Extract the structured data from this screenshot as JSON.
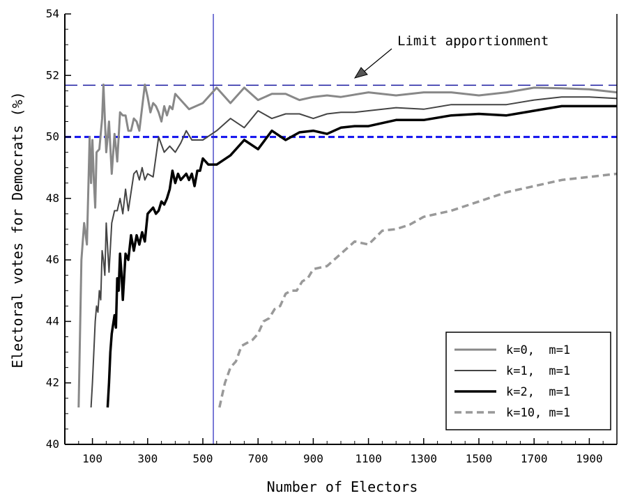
{
  "chart_data": {
    "type": "line",
    "xlabel": "Number of Electors",
    "ylabel": "Electoral votes for Democrats (%)",
    "xlim": [
      0,
      2000
    ],
    "ylim": [
      40,
      54
    ],
    "xticks": [
      100,
      300,
      500,
      700,
      900,
      1100,
      1300,
      1500,
      1700,
      1900
    ],
    "yticks": [
      40,
      42,
      44,
      46,
      48,
      50,
      52,
      54
    ],
    "annotation": {
      "text": "Limit apportionment",
      "y": 51.68
    },
    "reference_lines": {
      "limit_apportionment_y": 51.68,
      "fifty_percent_y": 50.0,
      "vertical_x": 538
    },
    "legend_position": "bottom-right",
    "series": [
      {
        "name": "k=0,  m=1",
        "color": "#888888",
        "dash": "solid",
        "width": 3,
        "points": [
          [
            50,
            41.2
          ],
          [
            60,
            46.0
          ],
          [
            70,
            47.2
          ],
          [
            80,
            46.5
          ],
          [
            90,
            50.0
          ],
          [
            95,
            48.5
          ],
          [
            100,
            49.9
          ],
          [
            105,
            48.6
          ],
          [
            110,
            47.7
          ],
          [
            115,
            49.5
          ],
          [
            125,
            49.6
          ],
          [
            135,
            50.6
          ],
          [
            140,
            51.7
          ],
          [
            150,
            49.5
          ],
          [
            160,
            50.5
          ],
          [
            170,
            48.8
          ],
          [
            180,
            50.1
          ],
          [
            190,
            49.2
          ],
          [
            200,
            50.8
          ],
          [
            210,
            50.7
          ],
          [
            220,
            50.7
          ],
          [
            230,
            50.2
          ],
          [
            240,
            50.2
          ],
          [
            250,
            50.6
          ],
          [
            260,
            50.5
          ],
          [
            270,
            50.2
          ],
          [
            290,
            51.7
          ],
          [
            300,
            51.3
          ],
          [
            310,
            50.8
          ],
          [
            320,
            51.1
          ],
          [
            330,
            51.0
          ],
          [
            340,
            50.8
          ],
          [
            350,
            50.5
          ],
          [
            360,
            51.0
          ],
          [
            370,
            50.7
          ],
          [
            380,
            51.0
          ],
          [
            390,
            50.9
          ],
          [
            400,
            51.4
          ],
          [
            450,
            50.9
          ],
          [
            500,
            51.1
          ],
          [
            550,
            51.6
          ],
          [
            600,
            51.1
          ],
          [
            650,
            51.6
          ],
          [
            700,
            51.2
          ],
          [
            750,
            51.4
          ],
          [
            800,
            51.4
          ],
          [
            850,
            51.2
          ],
          [
            900,
            51.3
          ],
          [
            950,
            51.35
          ],
          [
            1000,
            51.3
          ],
          [
            1100,
            51.45
          ],
          [
            1200,
            51.35
          ],
          [
            1300,
            51.45
          ],
          [
            1400,
            51.45
          ],
          [
            1500,
            51.35
          ],
          [
            1600,
            51.45
          ],
          [
            1700,
            51.6
          ],
          [
            1800,
            51.58
          ],
          [
            1900,
            51.55
          ],
          [
            2000,
            51.45
          ]
        ]
      },
      {
        "name": "k=1,  m=1",
        "color": "#444444",
        "dash": "solid",
        "width": 2,
        "points": [
          [
            95,
            41.2
          ],
          [
            100,
            42.0
          ],
          [
            110,
            44.0
          ],
          [
            115,
            44.5
          ],
          [
            120,
            44.3
          ],
          [
            125,
            45.0
          ],
          [
            130,
            44.7
          ],
          [
            135,
            46.3
          ],
          [
            140,
            46.0
          ],
          [
            145,
            45.5
          ],
          [
            150,
            47.2
          ],
          [
            160,
            45.6
          ],
          [
            170,
            47.2
          ],
          [
            180,
            47.6
          ],
          [
            190,
            47.6
          ],
          [
            200,
            48.0
          ],
          [
            210,
            47.5
          ],
          [
            220,
            48.3
          ],
          [
            230,
            47.6
          ],
          [
            240,
            48.2
          ],
          [
            250,
            48.8
          ],
          [
            260,
            48.9
          ],
          [
            270,
            48.6
          ],
          [
            280,
            49.0
          ],
          [
            290,
            48.6
          ],
          [
            300,
            48.8
          ],
          [
            320,
            48.7
          ],
          [
            340,
            50.0
          ],
          [
            360,
            49.5
          ],
          [
            380,
            49.7
          ],
          [
            400,
            49.5
          ],
          [
            420,
            49.8
          ],
          [
            440,
            50.2
          ],
          [
            460,
            49.9
          ],
          [
            500,
            49.9
          ],
          [
            550,
            50.2
          ],
          [
            600,
            50.6
          ],
          [
            650,
            50.3
          ],
          [
            700,
            50.85
          ],
          [
            750,
            50.6
          ],
          [
            800,
            50.75
          ],
          [
            850,
            50.75
          ],
          [
            900,
            50.6
          ],
          [
            950,
            50.75
          ],
          [
            1000,
            50.8
          ],
          [
            1050,
            50.8
          ],
          [
            1100,
            50.85
          ],
          [
            1200,
            50.95
          ],
          [
            1300,
            50.9
          ],
          [
            1400,
            51.05
          ],
          [
            1500,
            51.05
          ],
          [
            1600,
            51.05
          ],
          [
            1700,
            51.2
          ],
          [
            1800,
            51.3
          ],
          [
            1900,
            51.3
          ],
          [
            2000,
            51.25
          ]
        ]
      },
      {
        "name": "k=2,  m=1",
        "color": "#000000",
        "dash": "solid",
        "width": 3.5,
        "points": [
          [
            155,
            41.2
          ],
          [
            160,
            42.0
          ],
          [
            165,
            43.0
          ],
          [
            170,
            43.6
          ],
          [
            180,
            44.2
          ],
          [
            185,
            43.8
          ],
          [
            190,
            45.4
          ],
          [
            195,
            45.0
          ],
          [
            200,
            46.2
          ],
          [
            205,
            45.6
          ],
          [
            210,
            44.7
          ],
          [
            220,
            46.2
          ],
          [
            230,
            46.0
          ],
          [
            240,
            46.8
          ],
          [
            250,
            46.3
          ],
          [
            260,
            46.8
          ],
          [
            270,
            46.5
          ],
          [
            280,
            46.9
          ],
          [
            290,
            46.6
          ],
          [
            300,
            47.5
          ],
          [
            320,
            47.7
          ],
          [
            330,
            47.5
          ],
          [
            340,
            47.6
          ],
          [
            350,
            47.9
          ],
          [
            360,
            47.8
          ],
          [
            370,
            48.0
          ],
          [
            380,
            48.3
          ],
          [
            390,
            48.9
          ],
          [
            400,
            48.5
          ],
          [
            410,
            48.8
          ],
          [
            420,
            48.6
          ],
          [
            440,
            48.8
          ],
          [
            450,
            48.6
          ],
          [
            460,
            48.8
          ],
          [
            470,
            48.4
          ],
          [
            480,
            48.9
          ],
          [
            490,
            48.9
          ],
          [
            500,
            49.3
          ],
          [
            520,
            49.1
          ],
          [
            550,
            49.1
          ],
          [
            600,
            49.4
          ],
          [
            650,
            49.9
          ],
          [
            700,
            49.6
          ],
          [
            750,
            50.2
          ],
          [
            800,
            49.9
          ],
          [
            850,
            50.15
          ],
          [
            900,
            50.2
          ],
          [
            950,
            50.1
          ],
          [
            1000,
            50.3
          ],
          [
            1050,
            50.35
          ],
          [
            1100,
            50.35
          ],
          [
            1200,
            50.55
          ],
          [
            1300,
            50.55
          ],
          [
            1400,
            50.7
          ],
          [
            1500,
            50.75
          ],
          [
            1600,
            50.7
          ],
          [
            1700,
            50.85
          ],
          [
            1800,
            51.0
          ],
          [
            1900,
            51.0
          ],
          [
            2000,
            51.0
          ]
        ]
      },
      {
        "name": "k=10, m=1",
        "color": "#999999",
        "dash": "dashed",
        "width": 3.5,
        "points": [
          [
            560,
            41.2
          ],
          [
            570,
            41.6
          ],
          [
            580,
            42.0
          ],
          [
            600,
            42.5
          ],
          [
            620,
            42.7
          ],
          [
            640,
            43.2
          ],
          [
            660,
            43.3
          ],
          [
            680,
            43.4
          ],
          [
            700,
            43.6
          ],
          [
            720,
            44.0
          ],
          [
            740,
            44.1
          ],
          [
            760,
            44.4
          ],
          [
            780,
            44.5
          ],
          [
            800,
            44.9
          ],
          [
            820,
            45.0
          ],
          [
            840,
            45.0
          ],
          [
            860,
            45.3
          ],
          [
            880,
            45.4
          ],
          [
            900,
            45.7
          ],
          [
            950,
            45.8
          ],
          [
            1000,
            46.2
          ],
          [
            1050,
            46.6
          ],
          [
            1100,
            46.5
          ],
          [
            1150,
            46.95
          ],
          [
            1200,
            47.0
          ],
          [
            1250,
            47.15
          ],
          [
            1300,
            47.4
          ],
          [
            1400,
            47.6
          ],
          [
            1500,
            47.9
          ],
          [
            1600,
            48.2
          ],
          [
            1700,
            48.4
          ],
          [
            1800,
            48.6
          ],
          [
            1900,
            48.7
          ],
          [
            2000,
            48.8
          ]
        ]
      }
    ]
  }
}
